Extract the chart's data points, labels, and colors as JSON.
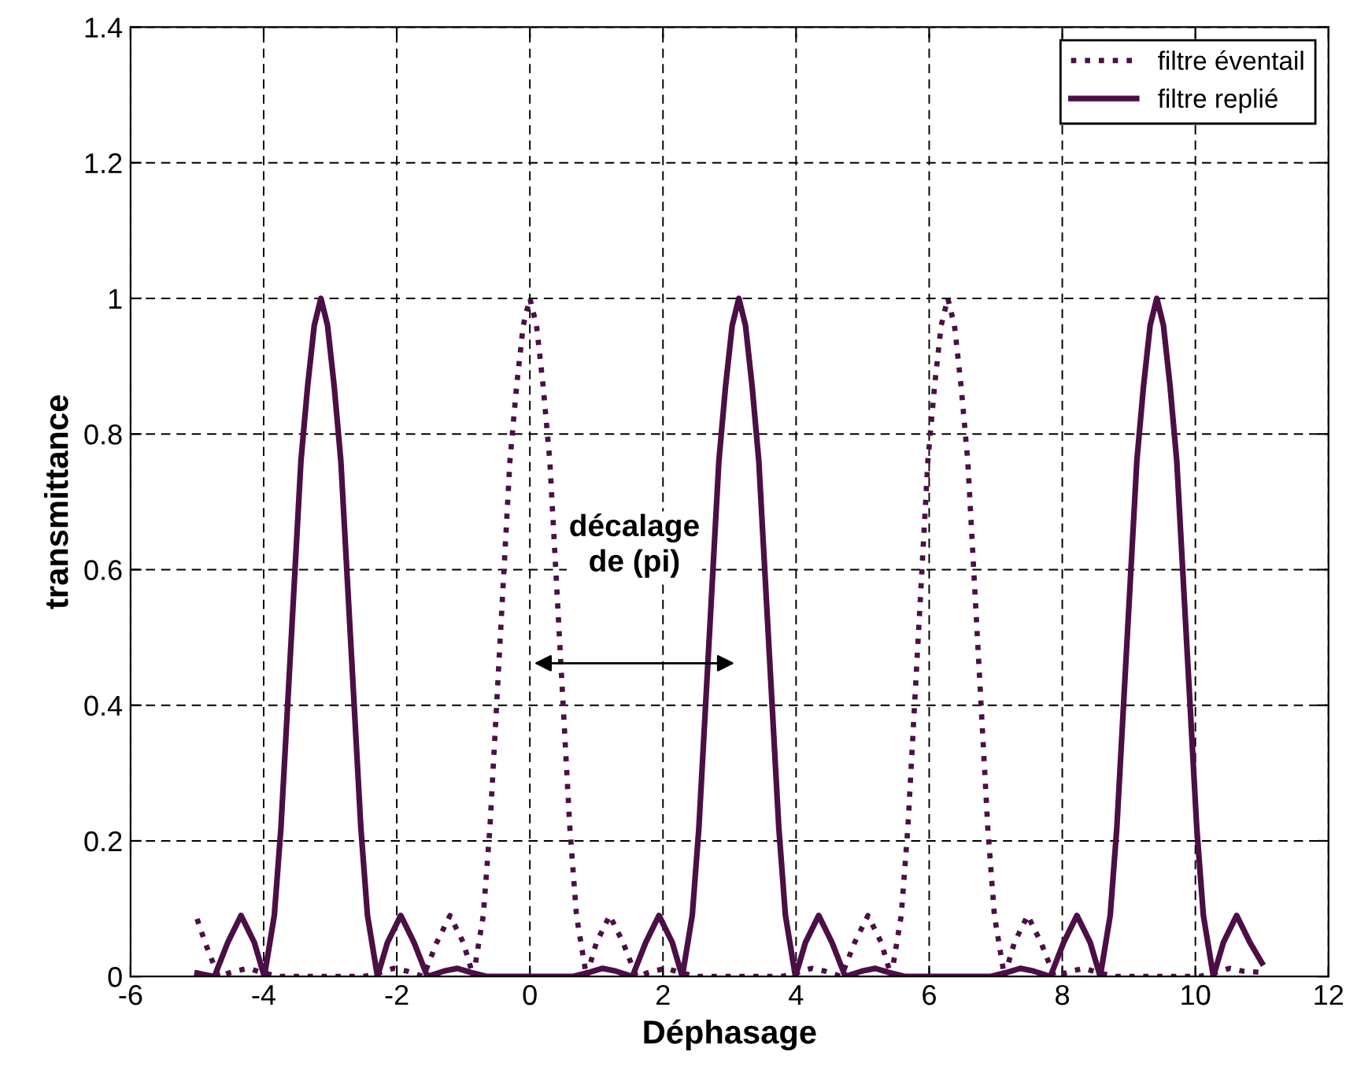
{
  "chart_data": {
    "type": "line",
    "xlabel": "Déphasage",
    "ylabel": "transmittance",
    "xlim": [
      -6,
      12
    ],
    "xticks": [
      -6,
      -4,
      -2,
      0,
      2,
      4,
      6,
      8,
      10,
      12
    ],
    "ylim": [
      0,
      1.4
    ],
    "yticks": [
      0,
      0.2,
      0.4,
      0.6,
      0.8,
      1,
      1.2,
      1.4
    ],
    "grid": true,
    "legend": "top right",
    "marker": "none",
    "annotations": [
      "décalage\nde (pi)"
    ],
    "series": [
      {
        "name": "filtre éventail",
        "color": "#4b0f46",
        "line_style": "dotted",
        "x": [
          -5.0,
          -4.88,
          -4.68,
          -4.43,
          -4.23,
          -4.03,
          -3.78,
          -2.5,
          -2.25,
          -2.05,
          -1.85,
          -1.6,
          -1.4,
          -1.2,
          -1.0,
          -0.85,
          -0.7,
          -0.6,
          -0.5,
          -0.4,
          -0.3,
          -0.2,
          -0.1,
          0,
          0.1,
          0.2,
          0.3,
          0.4,
          0.5,
          0.6,
          0.7,
          0.85,
          1.0,
          1.2,
          1.4,
          1.6,
          1.85,
          2.05,
          2.25,
          2.5,
          3.78,
          4.03,
          4.23,
          4.43,
          4.68,
          4.88,
          5.08,
          5.28,
          5.43,
          5.58,
          5.68,
          5.78,
          5.88,
          5.98,
          6.08,
          6.18,
          6.28,
          6.38,
          6.48,
          6.58,
          6.68,
          6.78,
          6.88,
          6.98,
          7.13,
          7.28,
          7.48,
          7.68,
          7.88,
          8.13,
          8.33,
          8.53,
          8.78,
          10.06,
          10.31,
          10.51,
          10.71,
          11.0
        ],
        "values": [
          0.085,
          0.05,
          0,
          0.008,
          0.012,
          0.006,
          0,
          0,
          0.006,
          0.012,
          0.008,
          0,
          0.05,
          0.09,
          0.05,
          0,
          0.09,
          0.22,
          0.4,
          0.58,
          0.76,
          0.87,
          0.96,
          1,
          0.96,
          0.87,
          0.76,
          0.58,
          0.4,
          0.22,
          0.09,
          0,
          0.05,
          0.09,
          0.05,
          0,
          0.008,
          0.012,
          0.006,
          0,
          0,
          0.006,
          0.012,
          0.008,
          0,
          0.05,
          0.09,
          0.05,
          0,
          0.09,
          0.22,
          0.4,
          0.58,
          0.76,
          0.87,
          0.96,
          1,
          0.96,
          0.87,
          0.76,
          0.58,
          0.4,
          0.22,
          0.09,
          0,
          0.05,
          0.09,
          0.05,
          0,
          0.008,
          0.012,
          0.006,
          0,
          0,
          0.006,
          0.012,
          0.008,
          0.006
        ]
      },
      {
        "name": "filtre replié",
        "color": "#4b0f46",
        "line_style": "solid",
        "x": [
          -5.0,
          -4.74,
          -4.54,
          -4.34,
          -4.14,
          -3.99,
          -3.84,
          -3.74,
          -3.64,
          -3.54,
          -3.44,
          -3.34,
          -3.24,
          -3.14,
          -3.04,
          -2.94,
          -2.84,
          -2.74,
          -2.64,
          -2.54,
          -2.44,
          -2.29,
          -2.14,
          -1.94,
          -1.74,
          -1.54,
          -1.29,
          -1.09,
          -0.89,
          -0.64,
          0,
          0.64,
          0.89,
          1.09,
          1.29,
          1.54,
          1.74,
          1.94,
          2.14,
          2.29,
          2.44,
          2.54,
          2.64,
          2.74,
          2.84,
          2.94,
          3.04,
          3.14,
          3.24,
          3.34,
          3.44,
          3.54,
          3.64,
          3.74,
          3.84,
          3.99,
          4.14,
          4.34,
          4.54,
          4.74,
          4.99,
          5.19,
          5.39,
          5.64,
          6.28,
          6.92,
          7.17,
          7.37,
          7.57,
          7.82,
          8.02,
          8.22,
          8.42,
          8.57,
          8.72,
          8.82,
          8.92,
          9.02,
          9.12,
          9.22,
          9.32,
          9.42,
          9.52,
          9.62,
          9.72,
          9.82,
          9.92,
          10.02,
          10.12,
          10.27,
          10.42,
          10.62,
          10.82,
          11.0
        ],
        "values": [
          0.005,
          0,
          0.05,
          0.09,
          0.05,
          0,
          0.09,
          0.22,
          0.4,
          0.58,
          0.76,
          0.87,
          0.96,
          1,
          0.96,
          0.87,
          0.76,
          0.58,
          0.4,
          0.22,
          0.09,
          0,
          0.05,
          0.09,
          0.05,
          0,
          0.008,
          0.012,
          0.006,
          0,
          0,
          0,
          0.006,
          0.012,
          0.008,
          0,
          0.05,
          0.09,
          0.05,
          0,
          0.09,
          0.22,
          0.4,
          0.58,
          0.76,
          0.87,
          0.96,
          1,
          0.96,
          0.87,
          0.76,
          0.58,
          0.4,
          0.22,
          0.09,
          0,
          0.05,
          0.09,
          0.05,
          0,
          0.008,
          0.012,
          0.006,
          0,
          0,
          0,
          0.006,
          0.012,
          0.008,
          0,
          0.05,
          0.09,
          0.05,
          0,
          0.09,
          0.22,
          0.4,
          0.58,
          0.76,
          0.87,
          0.96,
          1,
          0.96,
          0.87,
          0.76,
          0.58,
          0.4,
          0.22,
          0.09,
          0,
          0.05,
          0.09,
          0.05,
          0.02
        ]
      }
    ]
  }
}
